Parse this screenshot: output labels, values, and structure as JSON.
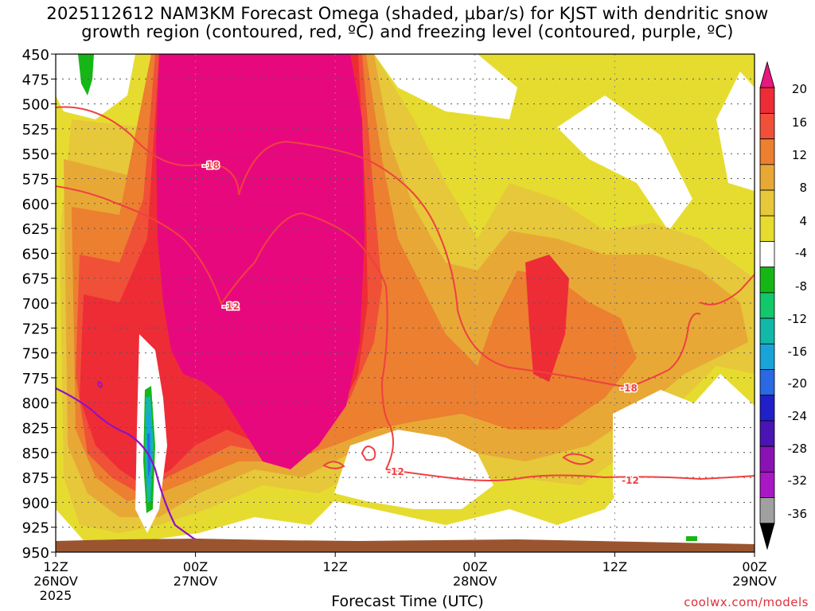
{
  "title": {
    "line1": "2025112612 NAM3KM Forecast Omega (shaded, μbar/s) for KJST with dendritic snow",
    "line2": "growth region (contoured, red, ºC) and freezing level (contoured, purple, ºC)"
  },
  "credit": "coolwx.com/models",
  "chart_data": {
    "type": "heatmap",
    "xlabel": "Forecast Time (UTC)",
    "ylabel": "",
    "y_axis": {
      "ticks": [
        450,
        475,
        500,
        525,
        550,
        575,
        600,
        625,
        650,
        675,
        700,
        725,
        750,
        775,
        800,
        825,
        850,
        875,
        900,
        925,
        950
      ],
      "range": [
        450,
        950
      ],
      "reversed": true
    },
    "x_axis": {
      "range_hours": [
        0,
        60
      ],
      "ticks": [
        {
          "hour": 0,
          "l1": "12Z",
          "l2": "26NOV",
          "l3": "2025"
        },
        {
          "hour": 12,
          "l1": "00Z",
          "l2": "27NOV",
          "l3": ""
        },
        {
          "hour": 24,
          "l1": "12Z",
          "l2": "",
          "l3": ""
        },
        {
          "hour": 36,
          "l1": "00Z",
          "l2": "28NOV",
          "l3": ""
        },
        {
          "hour": 48,
          "l1": "12Z",
          "l2": "",
          "l3": ""
        },
        {
          "hour": 60,
          "l1": "00Z",
          "l2": "29NOV",
          "l3": ""
        }
      ]
    },
    "grid": true,
    "colorbar": {
      "labels": [
        "20",
        "16",
        "12",
        "8",
        "4",
        "-4",
        "-8",
        "-12",
        "-16",
        "-20",
        "-24",
        "-28",
        "-32",
        "-36"
      ],
      "colors_top_to_bottom": [
        "#e8187e",
        "#ee2c36",
        "#f05038",
        "#ec7f30",
        "#e8a836",
        "#e6c83a",
        "#e6dc30",
        "#ffffff",
        "#17b617",
        "#12c86a",
        "#12b8a8",
        "#18a4d8",
        "#2a68e4",
        "#2020c8",
        "#4a14b4",
        "#8a12b4",
        "#a818c4",
        "#a0a0a0",
        "#000000"
      ]
    },
    "contours": [
      {
        "kind": "dendritic",
        "label": "-18"
      },
      {
        "kind": "dendritic",
        "label": "-12"
      },
      {
        "kind": "freezing",
        "label": ""
      }
    ],
    "annotations": [
      "-18",
      "-12",
      "-12",
      "-12",
      "-18"
    ]
  },
  "colors": {
    "magenta": "#e8087e",
    "red": "#ee2c36",
    "orange_red": "#f05038",
    "orange": "#ec7f30",
    "tan": "#e8a836",
    "gold": "#e6c83a",
    "yellow": "#e6dc30",
    "white": "#ffffff",
    "green": "#17b617",
    "teal": "#12b8a8",
    "cyan": "#18a4d8",
    "blue": "#2a68e4",
    "contour_red": "#f04040",
    "contour_purple": "#9010c8",
    "terrain": "#9a5530"
  }
}
